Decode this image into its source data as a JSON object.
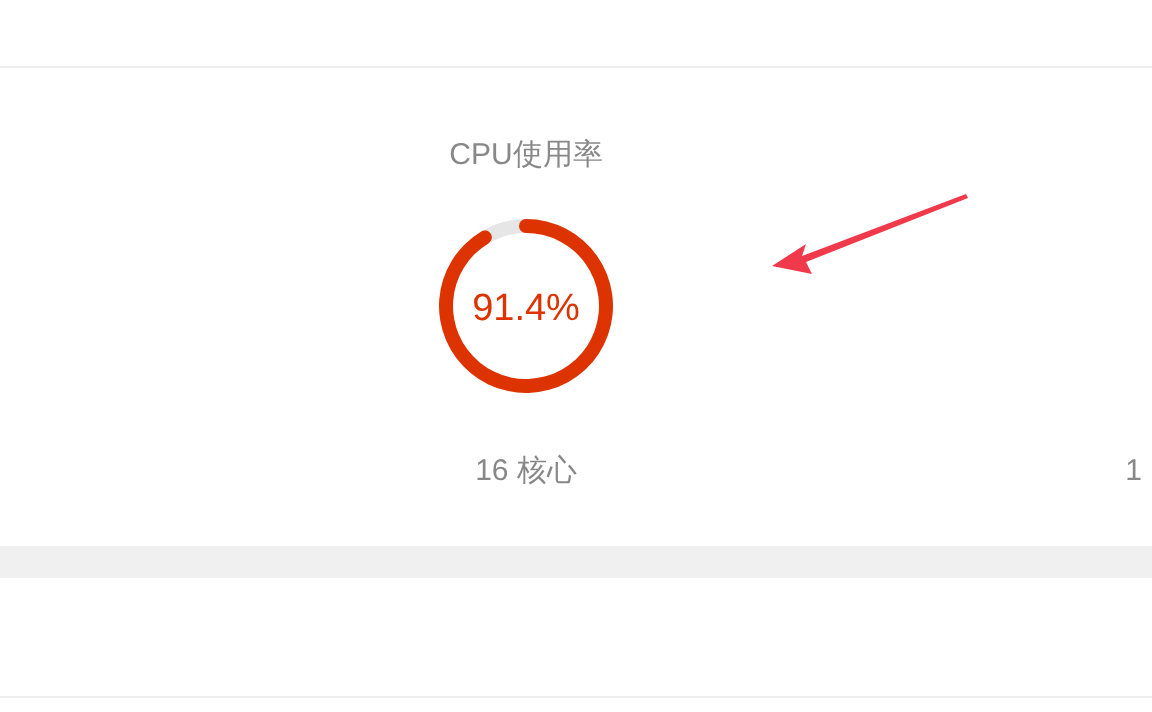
{
  "chart_data": {
    "type": "donut",
    "title": "CPU使用率",
    "categories": [
      null,
      null
    ],
    "values": [
      91.4,
      8.6
    ],
    "colors": [
      "#dd3300",
      "#e6e6e6"
    ],
    "value_labels": [
      "91.4%",
      null
    ],
    "annotations": [
      "16 核心",
      "1"
    ]
  }
}
